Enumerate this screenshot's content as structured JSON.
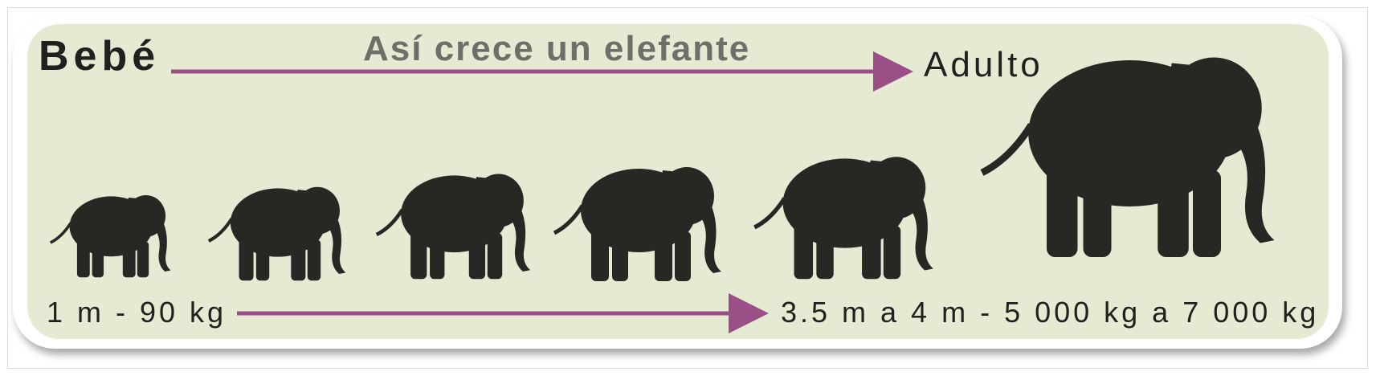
{
  "labels": {
    "start": "Bebé",
    "title": "Así crece un elefante",
    "end": "Adulto",
    "start_size": "1 m - 90 kg",
    "end_size": "3.5 m a 4 m - 5 000 kg a 7 000 kg"
  },
  "colors": {
    "panel": "#e5ead3",
    "silhouette": "#262824",
    "arrow": "#9a4f86",
    "title": "#6c7069"
  }
}
